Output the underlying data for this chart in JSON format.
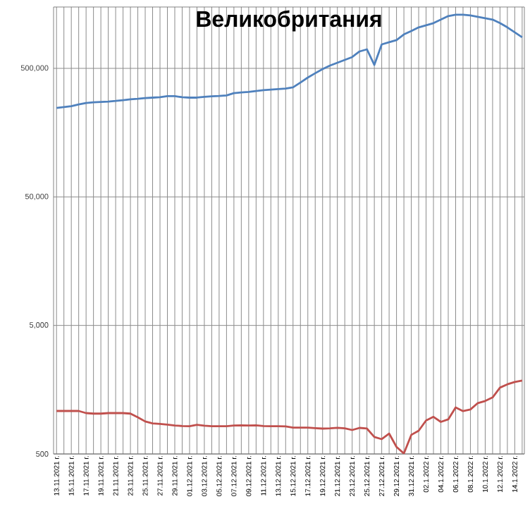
{
  "chart_data": {
    "type": "line",
    "title": "Великобритания",
    "categories": [
      "13.11.2021 г.",
      null,
      "15.11.2021 г.",
      null,
      "17.11.2021 г.",
      null,
      "19.11.2021 г.",
      null,
      "21.11.2021 г.",
      null,
      "23.11.2021 г.",
      null,
      "25.11.2021 г.",
      null,
      "27.11.2021 г.",
      null,
      "29.11.2021 г.",
      null,
      "01.12.2021 г.",
      null,
      "03.12.2021 г.",
      null,
      "05.12.2021 г.",
      null,
      "07.12.2021 г.",
      null,
      "09.12.2021 г.",
      null,
      "11.12.2021 г.",
      null,
      "13.12.2021 г.",
      null,
      "15.12.2021 г.",
      null,
      "17.12.2021 г.",
      null,
      "19.12.2021 г.",
      null,
      "21.12.2021 г.",
      null,
      "23.12.2021 г.",
      null,
      "25.12.2021 г.",
      null,
      "27.12.2021 г.",
      null,
      "29.12.2021 г.",
      null,
      "31.12.2021 г.",
      null,
      "02.1.2022 г.",
      null,
      "04.1.2022 г.",
      null,
      "06.1.2022 г.",
      null,
      "08.1.2022 г.",
      null,
      "10.1.2022 г.",
      null,
      "12.1.2022 г.",
      null,
      "14.1.2022 г.",
      null
    ],
    "series": [
      {
        "color": "#4f81bd",
        "values": [
          246000,
          250000,
          254000,
          262000,
          269000,
          272000,
          274000,
          276000,
          279000,
          283000,
          287000,
          290000,
          294000,
          296000,
          298000,
          304000,
          304000,
          298000,
          296000,
          296000,
          300000,
          303000,
          305000,
          308000,
          321000,
          325000,
          328000,
          333000,
          338000,
          342000,
          345000,
          348000,
          356000,
          388000,
          424000,
          458000,
          494000,
          526000,
          553000,
          582000,
          612000,
          677000,
          703000,
          532000,
          768000,
          798000,
          830000,
          918000,
          977000,
          1042000,
          1081000,
          1124000,
          1197000,
          1276000,
          1308000,
          1308000,
          1291000,
          1259000,
          1228000,
          1197000,
          1124000,
          1042000,
          953000,
          873000
        ]
      },
      {
        "color": "#c0504d",
        "values": [
          1080,
          1080,
          1080,
          1080,
          1040,
          1030,
          1030,
          1040,
          1040,
          1040,
          1030,
          965,
          895,
          865,
          857,
          846,
          833,
          825,
          823,
          844,
          830,
          823,
          823,
          823,
          833,
          836,
          833,
          836,
          825,
          823,
          823,
          819,
          802,
          802,
          802,
          794,
          788,
          792,
          800,
          792,
          768,
          798,
          788,
          678,
          652,
          721,
          567,
          504,
          704,
          759,
          911,
          972,
          888,
          929,
          1152,
          1077,
          1109,
          1244,
          1292,
          1376,
          1641,
          1741,
          1817,
          1864
        ]
      }
    ],
    "log": "y",
    "ylim": [
      500,
      1500000
    ],
    "yticks": [
      500,
      {
        "value": 5000,
        "label": "5,000"
      },
      {
        "value": 50000,
        "label": "50,000"
      },
      {
        "value": 500000,
        "label": "500,000"
      }
    ],
    "grid": true,
    "marker": "none",
    "line_style": "solid"
  }
}
